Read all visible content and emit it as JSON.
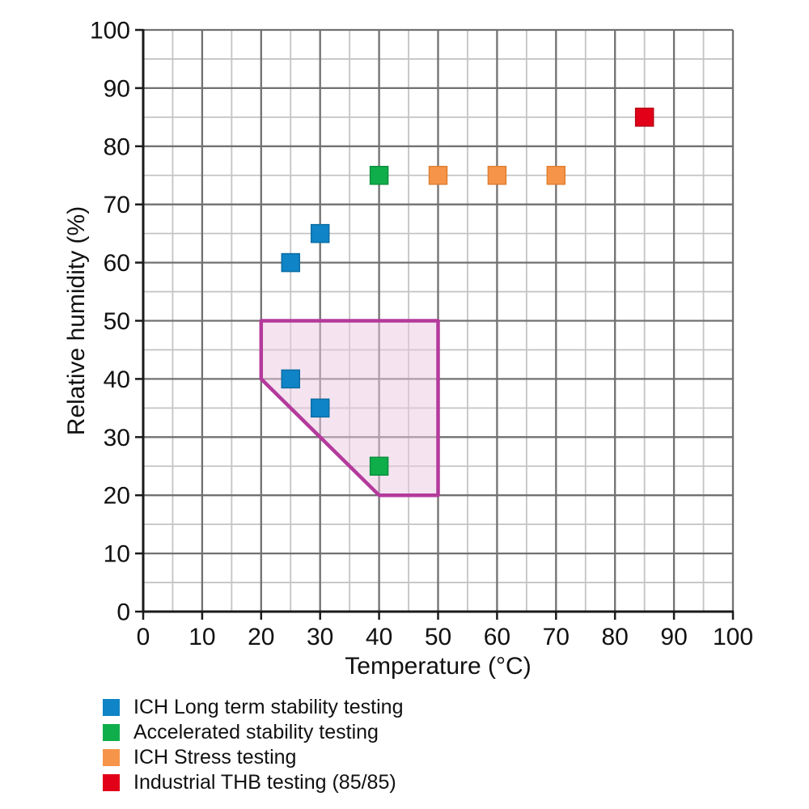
{
  "figure": {
    "background": "#ffffff"
  },
  "chart_data": {
    "type": "scatter",
    "title": "",
    "xlabel": "Temperature (°C)",
    "ylabel": "Relative humidity (%)",
    "xlim": [
      0,
      100
    ],
    "ylim": [
      0,
      100
    ],
    "x_ticks": [
      0,
      10,
      20,
      30,
      40,
      50,
      60,
      70,
      80,
      90,
      100
    ],
    "y_ticks": [
      0,
      10,
      20,
      30,
      40,
      50,
      60,
      70,
      80,
      90,
      100
    ],
    "minor_grid_step": 5,
    "major_grid_step": 10,
    "grid": true,
    "legend_position": "below-left",
    "marker": "square",
    "marker_size": 22,
    "series": [
      {
        "name": "ICH Long term stability testing",
        "color": "#0f84c6",
        "edge_color": "#0c6ca3",
        "points": [
          [
            25,
            60
          ],
          [
            30,
            65
          ],
          [
            25,
            40
          ],
          [
            30,
            35
          ]
        ]
      },
      {
        "name": "Accelerated stability testing",
        "color": "#10ae4b",
        "edge_color": "#0d8f3e",
        "points": [
          [
            40,
            75
          ],
          [
            40,
            25
          ]
        ]
      },
      {
        "name": "ICH Stress testing",
        "color": "#f69449",
        "edge_color": "#e07f33",
        "points": [
          [
            50,
            75
          ],
          [
            60,
            75
          ],
          [
            70,
            75
          ]
        ]
      },
      {
        "name": "Industrial THB testing (85/85)",
        "color": "#e20019",
        "edge_color": "#b80013",
        "points": [
          [
            85,
            85
          ]
        ]
      }
    ],
    "region": {
      "name": "allowed-climate-region",
      "vertices": [
        [
          20,
          50
        ],
        [
          50,
          50
        ],
        [
          50,
          20
        ],
        [
          40,
          20
        ],
        [
          20,
          40
        ]
      ],
      "stroke": "#b43a9c",
      "stroke_width": 4.5,
      "fill": "#ecc9e2",
      "fill_opacity": 0.5
    }
  },
  "style": {
    "major_grid_color": "#717171",
    "minor_grid_color": "#c4c4c4",
    "axis_color": "#1a1a1a",
    "tick_label_size": 30,
    "axis_title_size": 30
  }
}
